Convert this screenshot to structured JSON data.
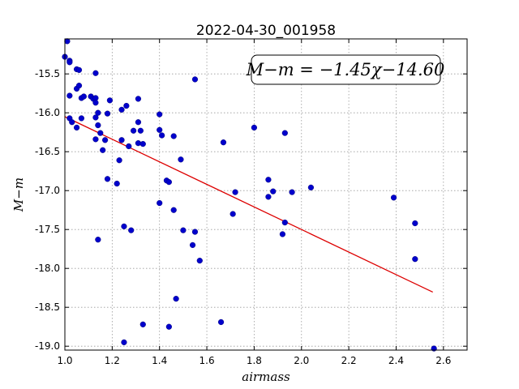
{
  "chart_data": {
    "type": "scatter",
    "title": "2022-04-30_001958",
    "xlabel": "airmass",
    "ylabel": "M−m",
    "xlim": [
      1.0,
      2.7
    ],
    "ylim": [
      -19.05,
      -15.05
    ],
    "y_inverted": true,
    "grid": true,
    "xticks": [
      "1.0",
      "1.2",
      "1.4",
      "1.6",
      "1.8",
      "2.0",
      "2.2",
      "2.4",
      "2.6"
    ],
    "yticks": [
      "-15.5",
      "-16.0",
      "-16.5",
      "-17.0",
      "-17.5",
      "-18.0",
      "-18.5",
      "-19.0"
    ],
    "xtick_values": [
      1.0,
      1.2,
      1.4,
      1.6,
      1.8,
      2.0,
      2.2,
      2.4,
      2.6
    ],
    "ytick_values": [
      -15.5,
      -16.0,
      -16.5,
      -17.0,
      -17.5,
      -18.0,
      -18.5,
      -19.0
    ],
    "annotation": "M−m = −1.45χ−14.60",
    "colors": {
      "points": "#0000cc",
      "fit": "#dd0000",
      "grid": "#999999"
    },
    "fit_line": {
      "slope": -1.45,
      "intercept": -14.6,
      "x_range": [
        1.0,
        2.555
      ]
    },
    "points": [
      [
        1.0,
        -15.28
      ],
      [
        1.01,
        -15.08
      ],
      [
        1.02,
        -15.33
      ],
      [
        1.02,
        -15.35
      ],
      [
        1.02,
        -15.78
      ],
      [
        1.02,
        -16.07
      ],
      [
        1.03,
        -16.12
      ],
      [
        1.05,
        -16.19
      ],
      [
        1.05,
        -15.44
      ],
      [
        1.06,
        -15.45
      ],
      [
        1.05,
        -15.69
      ],
      [
        1.06,
        -15.65
      ],
      [
        1.07,
        -15.81
      ],
      [
        1.08,
        -15.79
      ],
      [
        1.07,
        -16.07
      ],
      [
        1.11,
        -15.79
      ],
      [
        1.12,
        -15.82
      ],
      [
        1.13,
        -15.81
      ],
      [
        1.13,
        -15.87
      ],
      [
        1.13,
        -15.49
      ],
      [
        1.13,
        -16.06
      ],
      [
        1.14,
        -16.0
      ],
      [
        1.14,
        -16.16
      ],
      [
        1.15,
        -16.26
      ],
      [
        1.13,
        -16.34
      ],
      [
        1.17,
        -16.35
      ],
      [
        1.16,
        -16.48
      ],
      [
        1.18,
        -16.01
      ],
      [
        1.19,
        -15.84
      ],
      [
        1.18,
        -16.85
      ],
      [
        1.14,
        -17.63
      ],
      [
        1.22,
        -16.91
      ],
      [
        1.23,
        -16.61
      ],
      [
        1.24,
        -15.96
      ],
      [
        1.24,
        -16.35
      ],
      [
        1.26,
        -15.91
      ],
      [
        1.27,
        -16.43
      ],
      [
        1.29,
        -16.23
      ],
      [
        1.31,
        -15.82
      ],
      [
        1.31,
        -16.12
      ],
      [
        1.32,
        -16.23
      ],
      [
        1.31,
        -16.39
      ],
      [
        1.33,
        -16.4
      ],
      [
        1.25,
        -17.46
      ],
      [
        1.28,
        -17.51
      ],
      [
        1.33,
        -18.72
      ],
      [
        1.25,
        -18.95
      ],
      [
        1.4,
        -16.02
      ],
      [
        1.4,
        -16.22
      ],
      [
        1.41,
        -16.29
      ],
      [
        1.46,
        -16.3
      ],
      [
        1.43,
        -16.87
      ],
      [
        1.44,
        -16.89
      ],
      [
        1.4,
        -17.16
      ],
      [
        1.46,
        -17.25
      ],
      [
        1.49,
        -16.6
      ],
      [
        1.5,
        -17.51
      ],
      [
        1.55,
        -17.53
      ],
      [
        1.54,
        -17.7
      ],
      [
        1.57,
        -17.9
      ],
      [
        1.55,
        -15.57
      ],
      [
        1.47,
        -18.39
      ],
      [
        1.44,
        -18.75
      ],
      [
        1.67,
        -16.38
      ],
      [
        1.72,
        -17.02
      ],
      [
        1.71,
        -17.3
      ],
      [
        1.66,
        -18.69
      ],
      [
        1.8,
        -16.19
      ],
      [
        1.86,
        -16.86
      ],
      [
        1.86,
        -17.08
      ],
      [
        1.88,
        -17.01
      ],
      [
        1.93,
        -16.26
      ],
      [
        1.96,
        -17.02
      ],
      [
        1.93,
        -17.41
      ],
      [
        1.92,
        -17.56
      ],
      [
        2.04,
        -16.96
      ],
      [
        2.39,
        -17.09
      ],
      [
        2.48,
        -17.42
      ],
      [
        2.48,
        -17.88
      ],
      [
        2.56,
        -19.03
      ]
    ]
  }
}
